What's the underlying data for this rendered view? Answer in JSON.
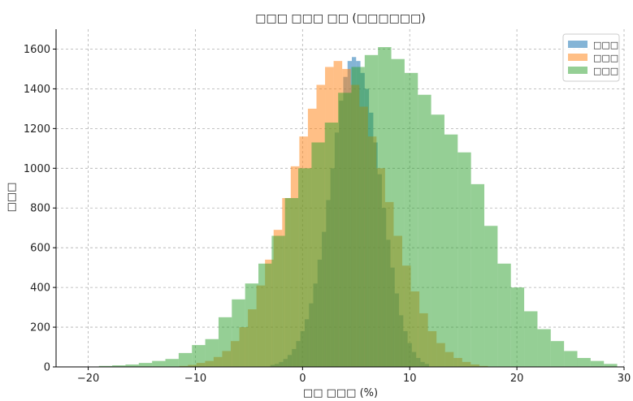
{
  "chart_data": {
    "type": "bar",
    "subtype": "histogram",
    "title": "□□□ □□□ □□ (□□□□□□)",
    "xlabel": "□□ □□□ (%)",
    "ylabel": "□□□",
    "xlim": [
      -23,
      30
    ],
    "ylim": [
      0,
      1700
    ],
    "x_ticks": [
      -20,
      -10,
      0,
      10,
      20,
      30
    ],
    "y_ticks": [
      0,
      200,
      400,
      600,
      800,
      1000,
      1200,
      1400,
      1600
    ],
    "grid": true,
    "legend_position": "top-right",
    "series": [
      {
        "name": "□□□",
        "color": "#1f77b4",
        "alpha": 0.55,
        "bin_start": -3.0,
        "bin_width": 0.4,
        "counts": [
          10,
          15,
          25,
          40,
          60,
          90,
          130,
          180,
          240,
          320,
          420,
          540,
          680,
          840,
          1000,
          1180,
          1340,
          1460,
          1540,
          1560,
          1540,
          1480,
          1400,
          1280,
          1130,
          970,
          800,
          640,
          500,
          370,
          260,
          180,
          120,
          75,
          45,
          25,
          15
        ]
      },
      {
        "name": "□□□",
        "color": "#ff7f0e",
        "alpha": 0.5,
        "bin_start": -11.5,
        "bin_width": 0.8,
        "counts": [
          5,
          10,
          20,
          30,
          50,
          80,
          130,
          200,
          290,
          410,
          540,
          690,
          850,
          1010,
          1160,
          1300,
          1420,
          1510,
          1540,
          1500,
          1420,
          1310,
          1160,
          1000,
          830,
          660,
          510,
          380,
          270,
          180,
          120,
          75,
          45,
          25,
          12,
          5
        ]
      },
      {
        "name": "□□□",
        "color": "#2ca02c",
        "alpha": 0.5,
        "bin_start": -19.0,
        "bin_width": 1.24,
        "counts": [
          5,
          8,
          12,
          20,
          30,
          40,
          70,
          110,
          140,
          250,
          340,
          420,
          520,
          660,
          850,
          1000,
          1130,
          1230,
          1380,
          1510,
          1570,
          1610,
          1550,
          1480,
          1370,
          1270,
          1170,
          1080,
          920,
          710,
          520,
          400,
          280,
          190,
          130,
          80,
          45,
          30,
          15
        ]
      }
    ]
  },
  "colors": {
    "axis": "#000000",
    "grid": "#b0b0b0",
    "background": "#ffffff"
  }
}
